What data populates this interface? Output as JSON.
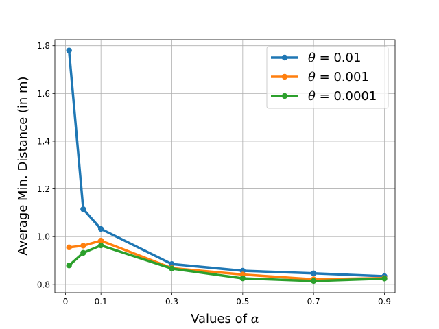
{
  "chart_data": {
    "type": "line",
    "xlabel_prefix": "Values of ",
    "xlabel_symbol": "α",
    "ylabel": "Average Min. Distance (in m)",
    "xlim": [
      -0.03,
      0.93
    ],
    "ylim": [
      0.765,
      1.825
    ],
    "xticks": [
      0,
      0.1,
      0.3,
      0.5,
      0.7,
      0.9
    ],
    "xtick_labels": [
      "0",
      "0.1",
      "0.3",
      "0.5",
      "0.7",
      "0.9"
    ],
    "yticks": [
      0.8,
      1.0,
      1.2,
      1.4,
      1.6,
      1.8
    ],
    "ytick_labels": [
      "0.8",
      "1.0",
      "1.2",
      "1.4",
      "1.6",
      "1.8"
    ],
    "grid": true,
    "legend_position": "top-right",
    "x": [
      0.01,
      0.05,
      0.1,
      0.3,
      0.5,
      0.7,
      0.9
    ],
    "series": [
      {
        "name_symbol": "θ",
        "name_rest": " = 0.01",
        "color": "#1f77b4",
        "values": [
          1.78,
          1.115,
          1.032,
          0.885,
          0.857,
          0.846,
          0.834
        ]
      },
      {
        "name_symbol": "θ",
        "name_rest": " = 0.001",
        "color": "#ff7f0e",
        "values": [
          0.955,
          0.962,
          0.983,
          0.868,
          0.841,
          0.821,
          0.826
        ]
      },
      {
        "name_symbol": "θ",
        "name_rest": " = 0.0001",
        "color": "#2ca02c",
        "values": [
          0.879,
          0.932,
          0.963,
          0.866,
          0.825,
          0.814,
          0.824
        ]
      }
    ]
  }
}
